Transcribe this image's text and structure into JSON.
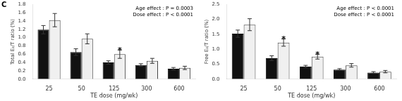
{
  "chart_data": [
    {
      "type": "bar",
      "xlabel": "TE dose (mg/wk)",
      "ylabel": "Total E₂/T ratio (%)",
      "categories": [
        "25",
        "50",
        "125",
        "300",
        "600"
      ],
      "series": [
        {
          "color": "#111111",
          "values": [
            1.19,
            0.65,
            0.4,
            0.34,
            0.25
          ],
          "errors": [
            0.1,
            0.08,
            0.04,
            0.03,
            0.03
          ]
        },
        {
          "color": "#f0f0f0",
          "values": [
            1.42,
            0.97,
            0.6,
            0.44,
            0.27
          ],
          "errors": [
            0.16,
            0.12,
            0.1,
            0.06,
            0.04
          ]
        }
      ],
      "ylim": [
        0,
        1.8
      ],
      "yticks": [
        {
          "value": 0,
          "label": "0.0"
        },
        0.2,
        0.4,
        0.6,
        0.8,
        {
          "value": 1.0,
          "label": "1.0"
        },
        1.2,
        1.4,
        1.6,
        1.8
      ],
      "grid": false,
      "annotations": [
        {
          "text": "Age effect : P = 0.0003\nDose effect : P < 0.0001",
          "position": "upper right"
        },
        {
          "text": "*",
          "x": "125",
          "series": 1
        },
        {
          "text": "C",
          "position": "outside upper left"
        }
      ]
    },
    {
      "type": "bar",
      "xlabel": "TE dose (mg/wk)",
      "ylabel": "Free E₂/T ratio (%)",
      "categories": [
        "25",
        "50",
        "125",
        "300",
        "600"
      ],
      "series": [
        {
          "color": "#111111",
          "values": [
            1.52,
            0.7,
            0.42,
            0.32,
            0.22
          ],
          "errors": [
            0.12,
            0.08,
            0.04,
            0.03,
            0.03
          ]
        },
        {
          "color": "#f0f0f0",
          "values": [
            1.82,
            1.22,
            0.75,
            0.46,
            0.25
          ],
          "errors": [
            0.2,
            0.12,
            0.08,
            0.06,
            0.04
          ]
        }
      ],
      "ylim": [
        0,
        2.5
      ],
      "yticks": [
        {
          "value": 0,
          "label": "0.0"
        },
        0.5,
        {
          "value": 1.0,
          "label": "1.0"
        },
        1.5,
        {
          "value": 2.0,
          "label": "2.0"
        },
        2.5
      ],
      "grid": false,
      "annotations": [
        {
          "text": "Age effect : P < 0.0001\nDose effect : P < 0.0001",
          "position": "upper right"
        },
        {
          "text": "*",
          "x": "50",
          "series": 1
        },
        {
          "text": "*",
          "x": "125",
          "series": 1
        }
      ]
    }
  ]
}
